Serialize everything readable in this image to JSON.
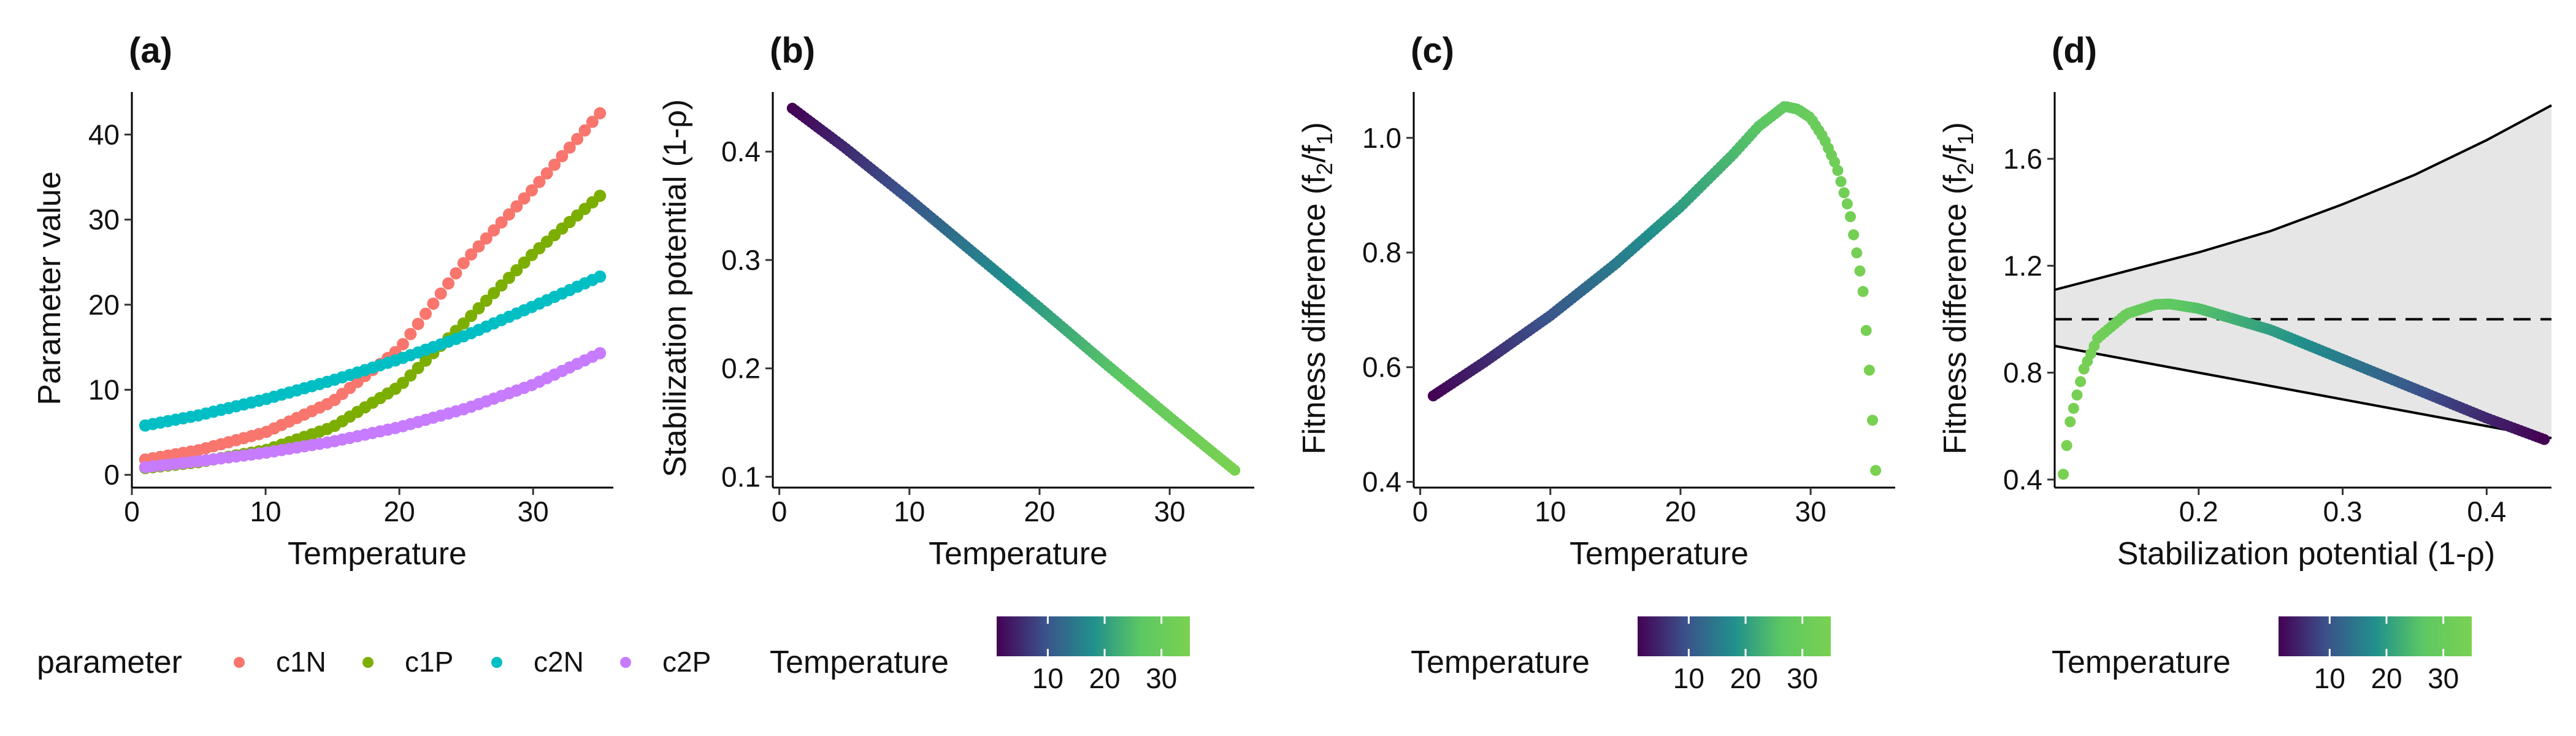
{
  "colors": {
    "c1N": "#F8766D",
    "c1P": "#7CAE00",
    "c2N": "#00BFC4",
    "c2P": "#C77CFF",
    "viridis": [
      "#440154",
      "#3B528B",
      "#21908C",
      "#5DC863",
      "#7AD151"
    ]
  },
  "chart_data": [
    {
      "panel": "(a)",
      "type": "line",
      "xlabel": "Temperature",
      "ylabel": "Parameter value",
      "xlim": [
        0,
        36
      ],
      "ylim": [
        -1.5,
        45
      ],
      "xticks": [
        0,
        10,
        20,
        30
      ],
      "yticks": [
        0,
        10,
        20,
        30,
        40
      ],
      "grid": false,
      "x": [
        1,
        5,
        10,
        15,
        20,
        25,
        30,
        35
      ],
      "series": [
        {
          "name": "c1N",
          "values": [
            1.8,
            2.9,
            5.0,
            8.6,
            14.8,
            25.3,
            33.6,
            42.5
          ]
        },
        {
          "name": "c1P",
          "values": [
            0.8,
            1.5,
            2.9,
            5.6,
            10.4,
            18.1,
            26.0,
            32.8
          ]
        },
        {
          "name": "c2N",
          "values": [
            5.8,
            7.0,
            8.9,
            11.1,
            13.6,
            16.4,
            19.8,
            23.3
          ]
        },
        {
          "name": "c2P",
          "values": [
            0.9,
            1.6,
            2.6,
            3.9,
            5.6,
            7.8,
            10.6,
            14.3
          ]
        }
      ],
      "legend": {
        "title": "parameter",
        "position": "bottom"
      }
    },
    {
      "panel": "(b)",
      "type": "scatter",
      "xlabel": "Temperature",
      "ylabel": "Stabilization potential (1-ρ)",
      "xlim": [
        -0.5,
        36.5
      ],
      "ylim": [
        0.09,
        0.455
      ],
      "xticks": [
        0,
        10,
        20,
        30
      ],
      "yticks": [
        0.1,
        0.2,
        0.3,
        0.4
      ],
      "grid": false,
      "x": [
        1,
        5,
        10,
        15,
        20,
        25,
        30,
        35
      ],
      "y": [
        0.44,
        0.404,
        0.356,
        0.306,
        0.256,
        0.205,
        0.155,
        0.106
      ],
      "color_by": "Temperature"
    },
    {
      "panel": "(c)",
      "type": "scatter",
      "xlabel": "Temperature",
      "ylabel": "Fitness difference (f2/f1)",
      "xlim": [
        -0.5,
        36.5
      ],
      "ylim": [
        0.39,
        1.08
      ],
      "xticks": [
        0,
        10,
        20,
        30
      ],
      "yticks": [
        0.4,
        0.6,
        0.8,
        1.0
      ],
      "grid": false,
      "x": [
        1,
        5,
        10,
        15,
        20,
        24,
        26,
        28,
        29,
        30,
        31,
        32,
        33,
        34,
        34.5,
        35
      ],
      "y": [
        0.55,
        0.61,
        0.69,
        0.78,
        0.88,
        0.97,
        1.02,
        1.055,
        1.05,
        1.035,
        1.0,
        0.95,
        0.87,
        0.74,
        0.6,
        0.42
      ],
      "color_by": "Temperature"
    },
    {
      "panel": "(d)",
      "type": "scatter",
      "xlabel": "Stabilization potential (1-ρ)",
      "ylabel": "Fitness difference (f2/f1)",
      "xlim": [
        0.1,
        0.445
      ],
      "ylim": [
        0.37,
        1.85
      ],
      "xticks": [
        0.2,
        0.3,
        0.4
      ],
      "yticks": [
        0.4,
        0.8,
        1.2,
        1.6
      ],
      "grid": false,
      "x": [
        0.106,
        0.11,
        0.12,
        0.13,
        0.15,
        0.17,
        0.18,
        0.2,
        0.25,
        0.3,
        0.35,
        0.4,
        0.44
      ],
      "y": [
        0.42,
        0.6,
        0.81,
        0.93,
        1.02,
        1.055,
        1.057,
        1.04,
        0.96,
        0.85,
        0.74,
        0.63,
        0.55
      ],
      "coexistence_bounds": {
        "x": [
          0.1,
          0.15,
          0.2,
          0.25,
          0.3,
          0.35,
          0.4,
          0.445
        ],
        "upper": [
          1.11,
          1.18,
          1.25,
          1.33,
          1.43,
          1.54,
          1.67,
          1.8
        ],
        "lower": [
          0.9,
          0.85,
          0.8,
          0.75,
          0.7,
          0.65,
          0.6,
          0.555
        ]
      },
      "reference_line": 1.0,
      "color_by": "Temperature"
    }
  ],
  "legends": {
    "parameter": {
      "title": "parameter",
      "items": [
        "c1N",
        "c1P",
        "c2N",
        "c2P"
      ]
    },
    "colorbar": {
      "title": "Temperature",
      "ticks": [
        "10",
        "20",
        "30"
      ],
      "tick_values": [
        10,
        20,
        30
      ],
      "range": [
        1,
        35
      ]
    }
  }
}
